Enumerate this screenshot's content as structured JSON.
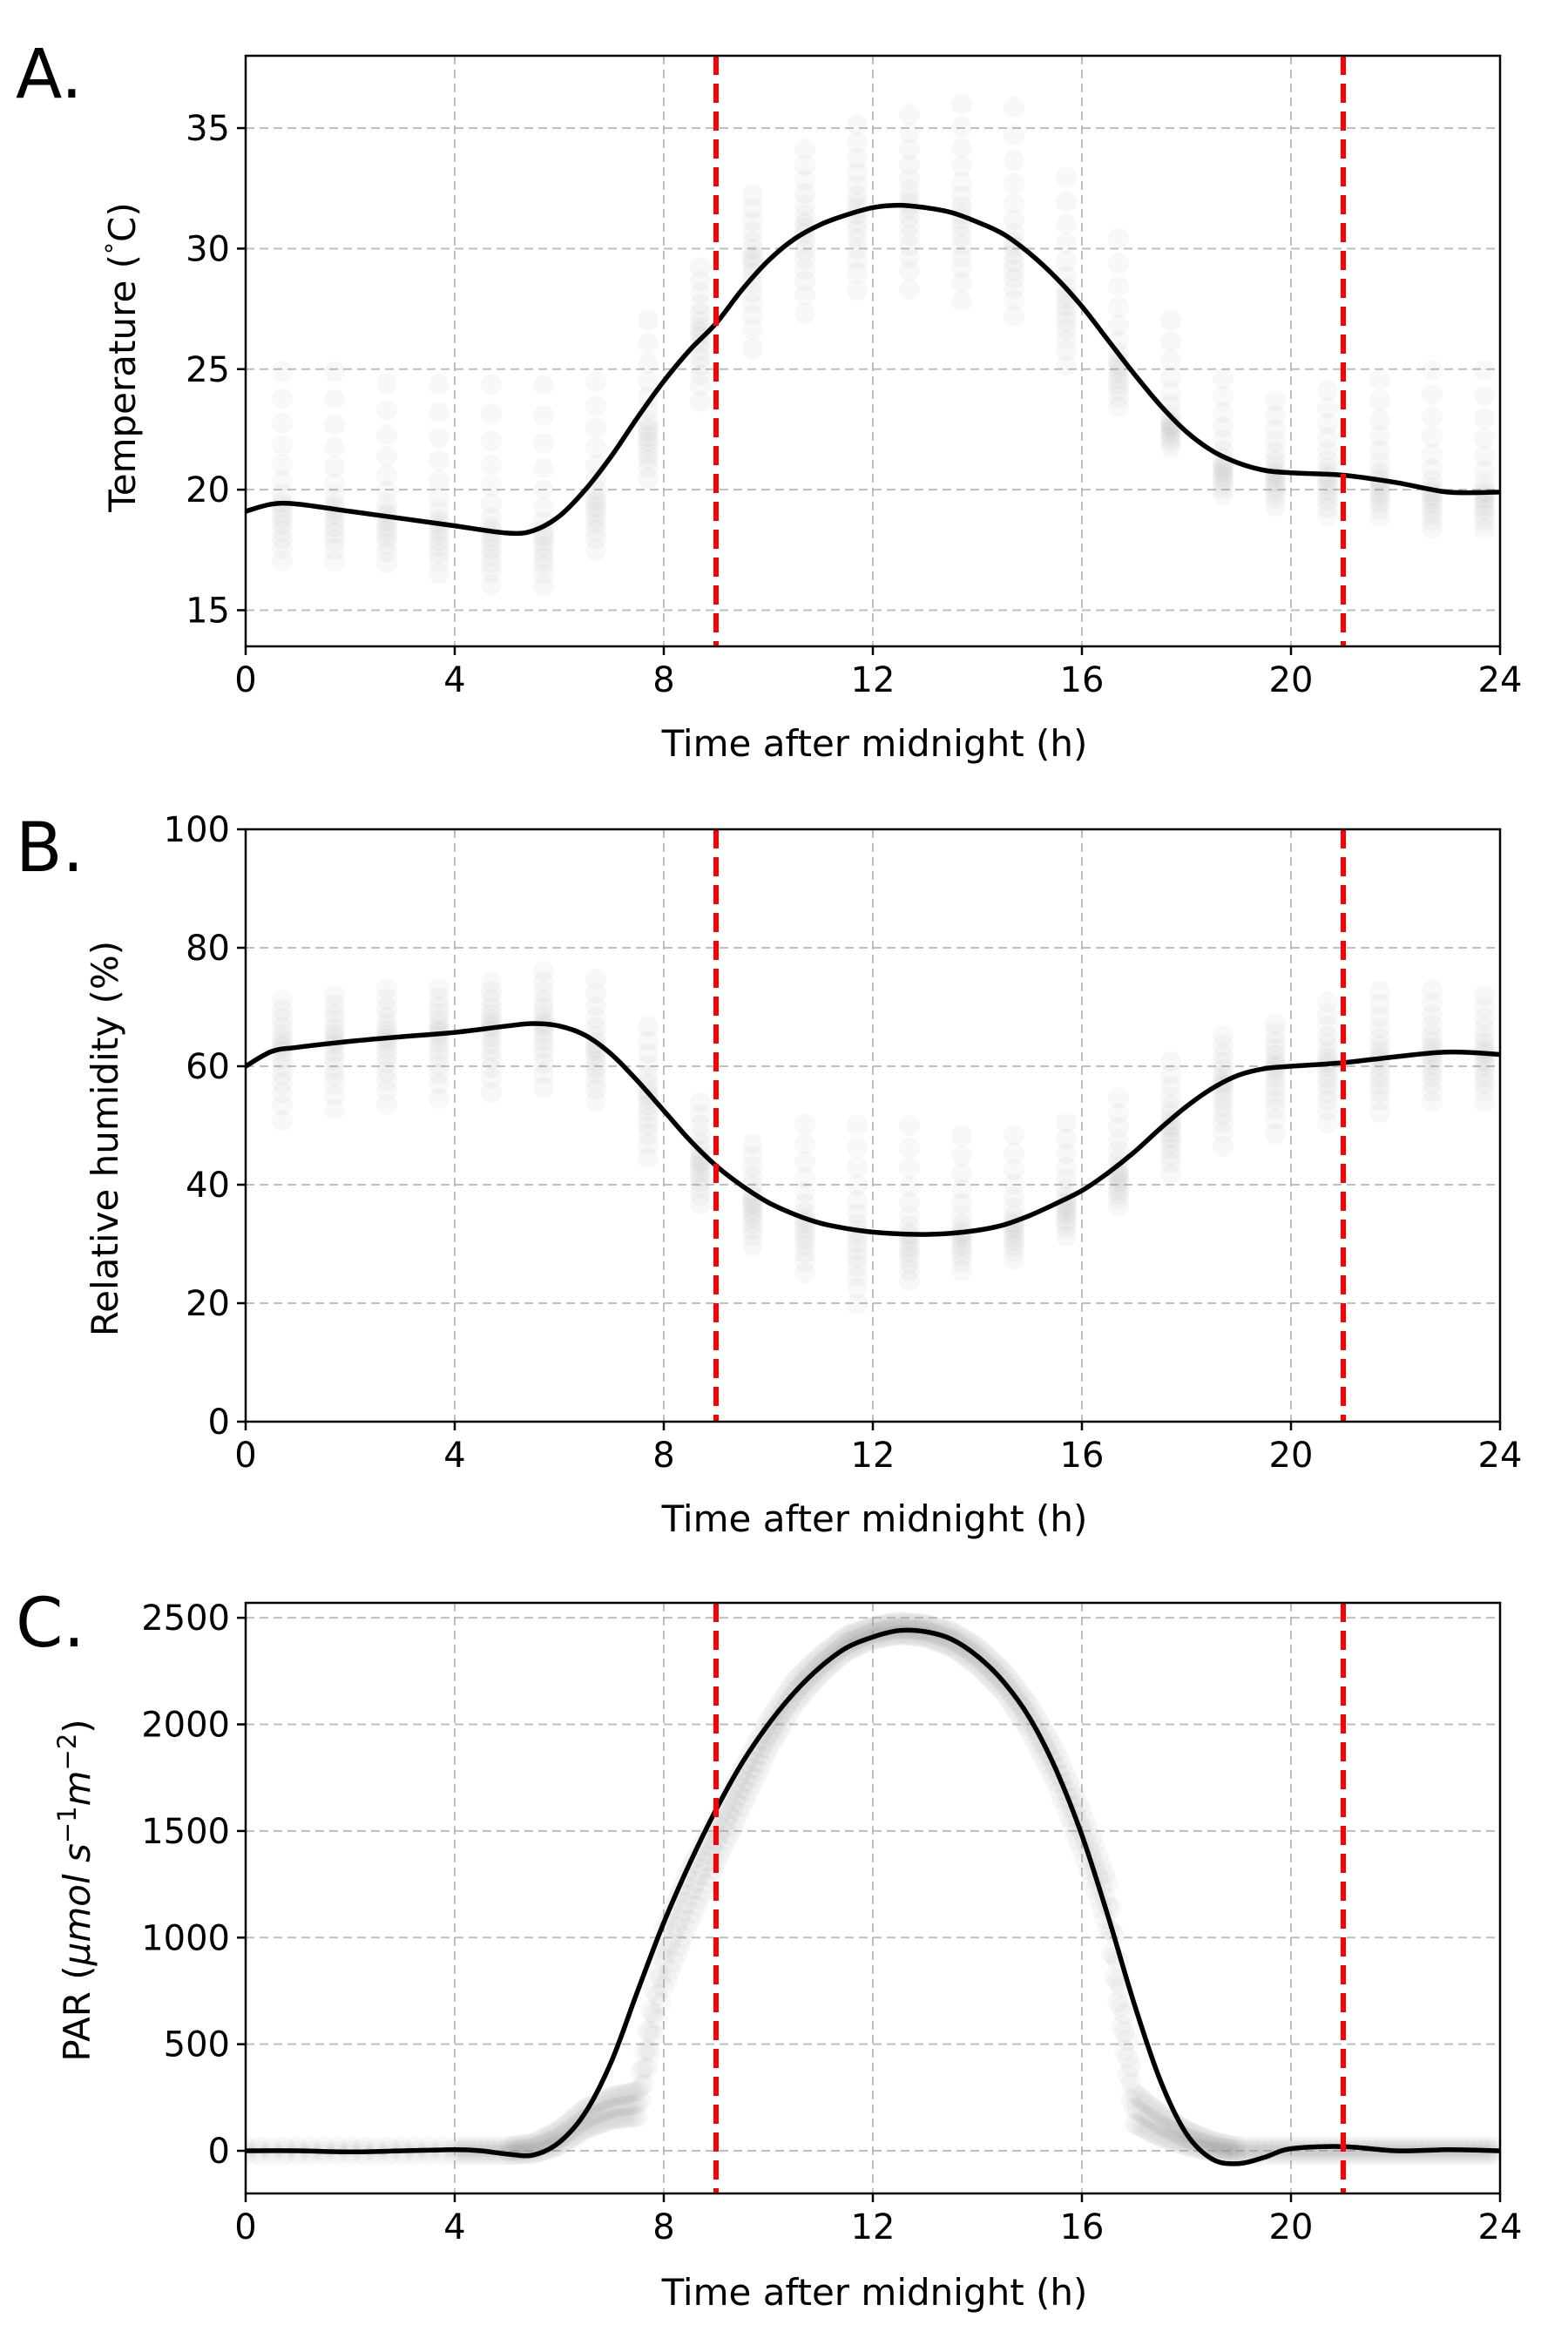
{
  "figure": {
    "vlines_x": [
      9,
      21
    ],
    "vline_color": "#ff0000",
    "curve_color": "#000000",
    "scatter_color": "#9e9e9e",
    "grid_color": "#b0b0b0"
  },
  "chart_data": [
    {
      "type": "line",
      "panel_label": "A.",
      "xlabel": "Time after midnight (h)",
      "ylabel": "Temperature (°C)",
      "ylabel_main": "Temperature (",
      "ylabel_deg": "°",
      "ylabel_unit": "C)",
      "xlim": [
        0,
        24
      ],
      "ylim": [
        13.5,
        38
      ],
      "xticks": [
        0,
        4,
        8,
        12,
        16,
        20,
        24
      ],
      "yticks": [
        15,
        20,
        25,
        30,
        35
      ],
      "grid": true,
      "vlines": [
        9,
        21
      ],
      "series": [
        {
          "kind": "fitted-curve",
          "x": [
            0,
            0.5,
            1,
            2,
            3,
            4,
            5,
            5.5,
            6,
            6.5,
            7,
            7.5,
            8,
            8.5,
            9,
            9.5,
            10,
            10.5,
            11,
            11.5,
            12,
            12.5,
            13,
            13.5,
            14,
            14.5,
            15,
            15.5,
            16,
            16.5,
            17,
            17.5,
            18,
            18.5,
            19,
            19.5,
            20,
            21,
            22,
            23,
            24
          ],
          "y": [
            19.1,
            19.4,
            19.4,
            19.1,
            18.8,
            18.5,
            18.2,
            18.3,
            18.9,
            20.0,
            21.4,
            23.0,
            24.5,
            25.8,
            26.9,
            28.3,
            29.5,
            30.4,
            31.0,
            31.4,
            31.7,
            31.8,
            31.7,
            31.5,
            31.1,
            30.6,
            29.8,
            28.8,
            27.6,
            26.2,
            24.8,
            23.5,
            22.4,
            21.6,
            21.1,
            20.8,
            20.7,
            20.6,
            20.3,
            19.9,
            19.9
          ]
        },
        {
          "kind": "hourly-observations",
          "x": [
            0.7,
            1.7,
            2.7,
            3.7,
            4.7,
            5.7,
            6.7,
            7.7,
            8.7,
            9.7,
            10.7,
            11.7,
            12.7,
            13.7,
            14.7,
            15.7,
            16.7,
            17.7,
            18.7,
            19.7,
            20.7,
            21.7,
            22.7,
            23.7
          ],
          "y_min": [
            16.5,
            16.5,
            16.5,
            16.0,
            15.5,
            15.5,
            17.0,
            20.0,
            23.0,
            25.0,
            26.5,
            27.5,
            27.5,
            27.0,
            26.5,
            24.5,
            23.0,
            21.5,
            19.5,
            19.0,
            18.5,
            18.5,
            18.0,
            18.0
          ],
          "y_max": [
            25.5,
            25.5,
            25.0,
            25.0,
            25.0,
            25.0,
            25.0,
            27.5,
            29.5,
            32.5,
            34.5,
            35.5,
            36.0,
            36.5,
            36.5,
            33.5,
            31.0,
            27.5,
            25.0,
            24.0,
            24.5,
            25.0,
            25.5,
            25.5
          ],
          "y_center": [
            19.4,
            19.3,
            19.0,
            18.7,
            18.4,
            18.2,
            19.6,
            22.5,
            26.5,
            29.5,
            30.8,
            31.6,
            31.8,
            31.4,
            30.2,
            28.0,
            25.3,
            22.8,
            21.0,
            20.7,
            20.6,
            20.4,
            20.0,
            19.9
          ]
        }
      ]
    },
    {
      "type": "line",
      "panel_label": "B.",
      "xlabel": "Time after midnight (h)",
      "ylabel": "Relative humidity (%)",
      "xlim": [
        0,
        24
      ],
      "ylim": [
        0,
        100
      ],
      "xticks": [
        0,
        4,
        8,
        12,
        16,
        20,
        24
      ],
      "yticks": [
        0,
        20,
        40,
        60,
        80,
        100
      ],
      "grid": true,
      "vlines": [
        9,
        21
      ],
      "series": [
        {
          "kind": "fitted-curve",
          "x": [
            0,
            0.5,
            1,
            2,
            3,
            4,
            5,
            5.5,
            6,
            6.5,
            7,
            7.5,
            8,
            8.5,
            9,
            9.5,
            10,
            10.5,
            11,
            11.5,
            12,
            12.5,
            13,
            13.5,
            14,
            14.5,
            15,
            15.5,
            16,
            16.5,
            17,
            17.5,
            18,
            18.5,
            19,
            19.5,
            20,
            21,
            22,
            23,
            24
          ],
          "y": [
            60,
            62.5,
            63.2,
            64.2,
            65.0,
            65.7,
            66.8,
            67.2,
            66.8,
            65.2,
            62.0,
            57.5,
            52.5,
            47.5,
            43.2,
            39.8,
            37.0,
            35.0,
            33.5,
            32.6,
            32.0,
            31.7,
            31.6,
            31.8,
            32.3,
            33.2,
            34.8,
            36.8,
            39.0,
            42.0,
            45.5,
            49.5,
            53.2,
            56.3,
            58.5,
            59.6,
            60.0,
            60.6,
            61.6,
            62.4,
            62.0
          ]
        },
        {
          "kind": "hourly-observations",
          "x": [
            0.7,
            1.7,
            2.7,
            3.7,
            4.7,
            5.7,
            6.7,
            7.7,
            8.7,
            9.7,
            10.7,
            11.7,
            12.7,
            13.7,
            14.7,
            15.7,
            16.7,
            17.7,
            18.7,
            19.7,
            20.7,
            21.7,
            22.7,
            23.7
          ],
          "y_min": [
            48,
            50,
            51,
            52,
            53,
            54,
            52,
            42,
            35,
            28,
            23,
            17,
            22,
            24,
            26,
            30,
            35,
            40,
            44,
            46,
            48,
            50,
            52,
            52
          ],
          "y_max": [
            72,
            73,
            74,
            74,
            75,
            77,
            76,
            68,
            55,
            48,
            52,
            52,
            52,
            50,
            50,
            52,
            56,
            62,
            66,
            68,
            72,
            74,
            74,
            73
          ],
          "y_center": [
            63,
            64,
            64.5,
            65.5,
            66.5,
            67,
            63,
            55,
            44,
            37,
            34,
            32,
            31.5,
            32,
            33.5,
            37,
            42,
            50,
            57,
            59.5,
            60.5,
            61.5,
            62.3,
            62.2
          ]
        }
      ]
    },
    {
      "type": "line",
      "panel_label": "C.",
      "xlabel": "Time after midnight (h)",
      "ylabel": "PAR (μmol s⁻¹m⁻²)",
      "ylabel_main": "PAR (",
      "ylabel_mu": "μ",
      "ylabel_mol": "mol s",
      "ylabel_exp1": "−1",
      "ylabel_m": "m",
      "ylabel_exp2": "−2",
      "ylabel_close": ")",
      "xlim": [
        0,
        24
      ],
      "ylim": [
        -200,
        2570
      ],
      "xticks": [
        0,
        4,
        8,
        12,
        16,
        20,
        24
      ],
      "yticks": [
        0,
        500,
        1000,
        1500,
        2000,
        2500
      ],
      "grid": true,
      "vlines": [
        9,
        21
      ],
      "series": [
        {
          "kind": "fitted-curve",
          "x": [
            0,
            1,
            2,
            3,
            4,
            4.5,
            5,
            5.5,
            6,
            6.5,
            7,
            7.5,
            8,
            8.5,
            9,
            9.5,
            10,
            10.5,
            11,
            11.5,
            12,
            12.5,
            13,
            13.5,
            14,
            14.5,
            15,
            15.5,
            16,
            16.5,
            17,
            17.5,
            18,
            18.5,
            19,
            19.5,
            20,
            21,
            22,
            23,
            24
          ],
          "y": [
            0,
            0,
            -5,
            0,
            5,
            0,
            -15,
            -20,
            40,
            180,
            420,
            750,
            1070,
            1350,
            1600,
            1820,
            2000,
            2150,
            2270,
            2360,
            2410,
            2440,
            2435,
            2400,
            2320,
            2200,
            2030,
            1790,
            1480,
            1100,
            690,
            330,
            80,
            -40,
            -60,
            -30,
            10,
            20,
            0,
            5,
            0
          ]
        },
        {
          "kind": "minute-observations",
          "x": [
            0,
            2,
            4,
            5,
            5.5,
            6,
            6.5,
            7,
            7.5,
            8,
            8.5,
            9,
            9.5,
            10,
            10.5,
            11,
            11.5,
            12,
            12.5,
            13,
            13.5,
            14,
            14.5,
            15,
            15.5,
            16,
            16.5,
            17,
            17.5,
            18,
            18.5,
            19,
            20,
            21,
            22,
            23,
            24
          ],
          "y": [
            0,
            0,
            0,
            0,
            10,
            60,
            150,
            200,
            220,
            900,
            1200,
            1450,
            1700,
            1950,
            2150,
            2280,
            2380,
            2430,
            2450,
            2440,
            2400,
            2320,
            2200,
            2030,
            1800,
            1500,
            1150,
            200,
            120,
            60,
            20,
            0,
            0,
            0,
            0,
            0,
            0
          ],
          "spread": [
            30,
            30,
            30,
            30,
            40,
            60,
            80,
            90,
            100,
            220,
            200,
            160,
            140,
            110,
            90,
            70,
            60,
            50,
            50,
            50,
            60,
            70,
            80,
            100,
            120,
            150,
            180,
            120,
            90,
            60,
            40,
            30,
            30,
            30,
            30,
            30,
            30
          ]
        }
      ]
    }
  ]
}
